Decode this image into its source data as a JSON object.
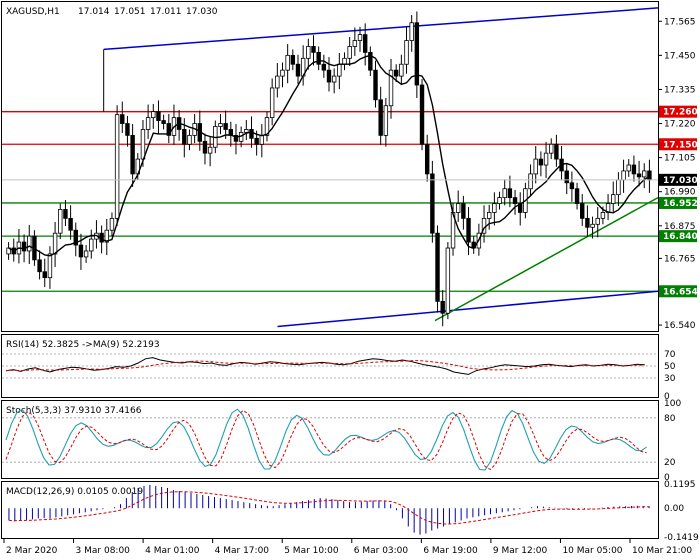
{
  "chart_data": [
    {
      "type": "candlestick",
      "title": "XAGUSD,H1",
      "ohlc_label": [
        "17.014",
        "17.051",
        "17.011",
        "17.030"
      ],
      "price_ticks": [
        "17.565",
        "17.450",
        "17.335",
        "17.220",
        "17.105",
        "16.990",
        "16.875",
        "16.765",
        "16.650",
        "16.540"
      ],
      "ylim": [
        16.52,
        17.63
      ],
      "last_price": "17.030",
      "levels": [
        {
          "label": "17.260",
          "value": 17.26,
          "color": "#e00000"
        },
        {
          "label": "17.150",
          "value": 17.15,
          "color": "#e00000"
        },
        {
          "label": "16.952",
          "value": 16.952,
          "color": "#008000"
        },
        {
          "label": "16.840",
          "value": 16.84,
          "color": "#008000"
        },
        {
          "label": "16.654",
          "value": 16.654,
          "color": "#008000"
        }
      ],
      "x_ticks": [
        "2 Mar 2020",
        "3 Mar 08:00",
        "4 Mar 01:00",
        "4 Mar 17:00",
        "5 Mar 10:00",
        "6 Mar 03:00",
        "6 Mar 19:00",
        "9 Mar 12:00",
        "10 Mar 05:00",
        "10 Mar 21:00"
      ],
      "trend_lines": [
        {
          "color": "#0000cc",
          "from": [
            0.155,
            17.47
          ],
          "to": [
            1.0,
            17.61
          ]
        },
        {
          "color": "#0000cc",
          "from": [
            0.42,
            16.535
          ],
          "to": [
            1.0,
            16.654
          ]
        },
        {
          "color": "#008000",
          "from": [
            0.66,
            16.555
          ],
          "to": [
            1.0,
            16.97
          ]
        }
      ],
      "close": [
        16.8,
        16.78,
        16.82,
        16.79,
        16.84,
        16.76,
        16.72,
        16.7,
        16.78,
        16.85,
        16.93,
        16.9,
        16.86,
        16.81,
        16.77,
        16.79,
        16.83,
        16.85,
        16.82,
        16.86,
        16.9,
        17.25,
        17.22,
        17.18,
        17.05,
        17.1,
        17.2,
        17.24,
        17.26,
        17.23,
        17.22,
        17.18,
        17.24,
        17.2,
        17.15,
        17.18,
        17.22,
        17.16,
        17.12,
        17.14,
        17.21,
        17.22,
        17.2,
        17.18,
        17.16,
        17.19,
        17.2,
        17.17,
        17.15,
        17.18,
        17.24,
        17.34,
        17.38,
        17.4,
        17.45,
        17.42,
        17.38,
        17.44,
        17.48,
        17.46,
        17.42,
        17.4,
        17.36,
        17.38,
        17.42,
        17.44,
        17.48,
        17.5,
        17.52,
        17.46,
        17.4,
        17.3,
        17.18,
        17.28,
        17.4,
        17.38,
        17.42,
        17.5,
        17.56,
        17.35,
        17.15,
        17.05,
        16.85,
        16.62,
        16.58,
        16.8,
        16.92,
        16.95,
        16.9,
        16.82,
        16.8,
        16.85,
        16.9,
        16.92,
        16.95,
        16.97,
        17.0,
        16.97,
        16.95,
        16.92,
        17.0,
        17.05,
        17.1,
        17.08,
        17.12,
        17.15,
        17.1,
        17.06,
        17.02,
        17.0,
        16.95,
        16.9,
        16.87,
        16.88,
        16.9,
        16.92,
        16.95,
        16.98,
        17.03,
        17.06,
        17.08,
        17.05,
        17.04,
        17.06,
        17.03
      ],
      "ma_last": 17.02
    },
    {
      "type": "line",
      "title": "RSI(14) 52.3825 ->MA(9) 52.2193",
      "y_ticks": [
        "70",
        "50",
        "30",
        "0"
      ],
      "ylim": [
        0,
        100
      ],
      "levels": [
        70,
        50,
        30
      ],
      "rsi": [
        42,
        44,
        41,
        45,
        47,
        43,
        40,
        44,
        46,
        48,
        47,
        45,
        43,
        44,
        46,
        49,
        48,
        50,
        55,
        62,
        64,
        60,
        58,
        56,
        55,
        57,
        56,
        54,
        55,
        52,
        51,
        54,
        56,
        55,
        53,
        55,
        57,
        56,
        54,
        53,
        52,
        54,
        55,
        56,
        55,
        53,
        52,
        54,
        58,
        60,
        62,
        61,
        59,
        58,
        60,
        58,
        55,
        52,
        50,
        48,
        45,
        40,
        38,
        36,
        42,
        45,
        47,
        50,
        52,
        51,
        50,
        49,
        50,
        52,
        53,
        51,
        50,
        49,
        51,
        52,
        50,
        51,
        53,
        52,
        50,
        51,
        53,
        52
      ],
      "ma_label": "->MA(9)"
    },
    {
      "type": "line",
      "title": "Stoch(5,3,3) 37.9310 37.4166",
      "y_ticks": [
        "100",
        "80",
        "20",
        "0"
      ],
      "ylim": [
        0,
        100
      ],
      "levels": [
        80,
        20
      ]
    },
    {
      "type": "bar",
      "title": "MACD(12,26,9) 0.0105 0.0019",
      "y_ticks": [
        "0.1195",
        "0.00",
        "-0.1419"
      ],
      "ylim": [
        -0.1419,
        0.1195
      ],
      "values": [
        -0.06,
        -0.065,
        -0.06,
        -0.058,
        -0.055,
        -0.05,
        -0.048,
        -0.05,
        -0.045,
        -0.04,
        -0.035,
        -0.03,
        -0.025,
        -0.02,
        -0.015,
        -0.01,
        -0.005,
        0.0,
        0.005,
        0.02,
        0.05,
        0.08,
        0.1,
        0.11,
        0.115,
        0.11,
        0.105,
        0.1,
        0.09,
        0.085,
        0.08,
        0.075,
        0.07,
        0.065,
        0.06,
        0.055,
        0.05,
        0.045,
        0.04,
        0.035,
        0.03,
        0.025,
        0.02,
        0.015,
        0.012,
        0.01,
        0.015,
        0.02,
        0.025,
        0.03,
        0.035,
        0.04,
        0.045,
        0.05,
        0.048,
        0.045,
        0.04,
        0.035,
        0.03,
        0.03,
        0.032,
        0.035,
        0.038,
        0.04,
        0.035,
        0.02,
        -0.01,
        -0.05,
        -0.09,
        -0.12,
        -0.13,
        -0.125,
        -0.11,
        -0.1,
        -0.09,
        -0.08,
        -0.07,
        -0.06,
        -0.05,
        -0.045,
        -0.04,
        -0.035,
        -0.03,
        -0.025,
        -0.02,
        -0.015,
        -0.01,
        -0.005,
        0.0,
        0.005,
        0.01,
        0.008,
        0.005,
        0.002,
        -0.002,
        -0.005,
        -0.008,
        -0.006,
        -0.004,
        -0.002,
        0.0,
        0.003,
        0.006,
        0.008,
        0.009,
        0.01,
        0.011,
        0.012,
        0.011,
        0.0105
      ]
    }
  ]
}
